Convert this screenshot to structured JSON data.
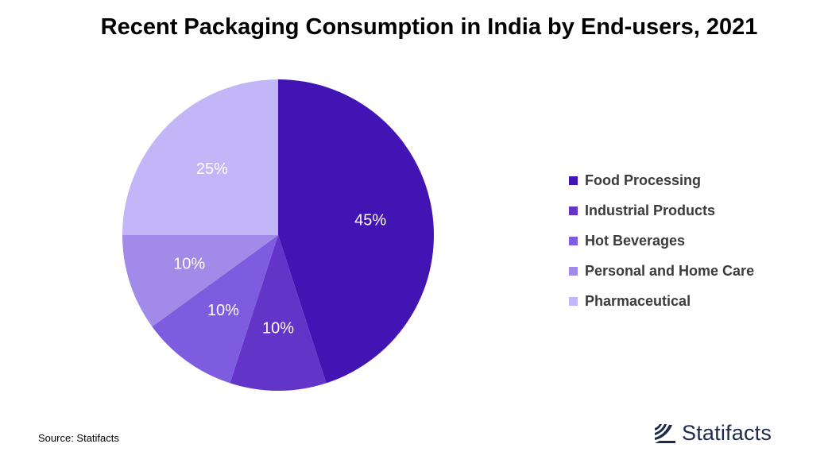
{
  "chart_data": {
    "type": "pie",
    "title": "Recent Packaging Consumption in India by End-users, 2021",
    "slices": [
      {
        "label": "Food Processing",
        "value": 45,
        "display": "45%",
        "color": "#4314b4"
      },
      {
        "label": "Industrial Products",
        "value": 10,
        "display": "10%",
        "color": "#6234c8"
      },
      {
        "label": "Hot Beverages",
        "value": 10,
        "display": "10%",
        "color": "#7d5ce0"
      },
      {
        "label": "Personal and Home Care",
        "value": 10,
        "display": "10%",
        "color": "#a18ae8"
      },
      {
        "label": "Pharmaceutical",
        "value": 25,
        "display": "25%",
        "color": "#c2b6f9"
      }
    ],
    "legend_position": "right"
  },
  "footer": {
    "source": "Source: Statifacts",
    "brand": "Statifacts"
  }
}
